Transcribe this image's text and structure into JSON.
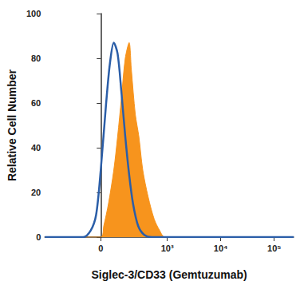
{
  "chart_data": {
    "type": "line",
    "x_label": "Siglec-3/CD33 (Gemtuzumab)",
    "y_label": "Relative Cell Number",
    "xlim": [
      -630,
      230000
    ],
    "xticks": [
      0,
      {
        "value": 1000,
        "label": "10³"
      },
      {
        "value": 10000,
        "label": "10⁴"
      },
      {
        "value": 100000,
        "label": "10⁵"
      }
    ],
    "ylim": [
      0,
      100
    ],
    "yticks": [
      0,
      20,
      40,
      60,
      80,
      100
    ],
    "grid": false,
    "series": [
      {
        "type": "area",
        "color": "#f7941d",
        "x": [
          -630,
          0,
          15,
          39,
          68,
          91,
          116,
          145,
          178,
          199,
          241,
          285,
          341,
          434,
          568,
          719,
          905,
          230000
        ],
        "values": [
          0,
          0,
          5,
          15,
          30,
          45,
          62,
          80,
          87,
          75,
          55,
          45,
          30,
          18,
          8,
          3,
          0,
          0
        ]
      },
      {
        "type": "line",
        "color": "#2b5ea8",
        "x": [
          -630,
          -96,
          -51,
          -23,
          0,
          27,
          47,
          68,
          91,
          116,
          145,
          178,
          216,
          276,
          366,
          514,
          230000
        ],
        "values": [
          0,
          0,
          3,
          10,
          30,
          60,
          78,
          87,
          82,
          65,
          45,
          28,
          15,
          5,
          1,
          0,
          0
        ]
      }
    ]
  }
}
